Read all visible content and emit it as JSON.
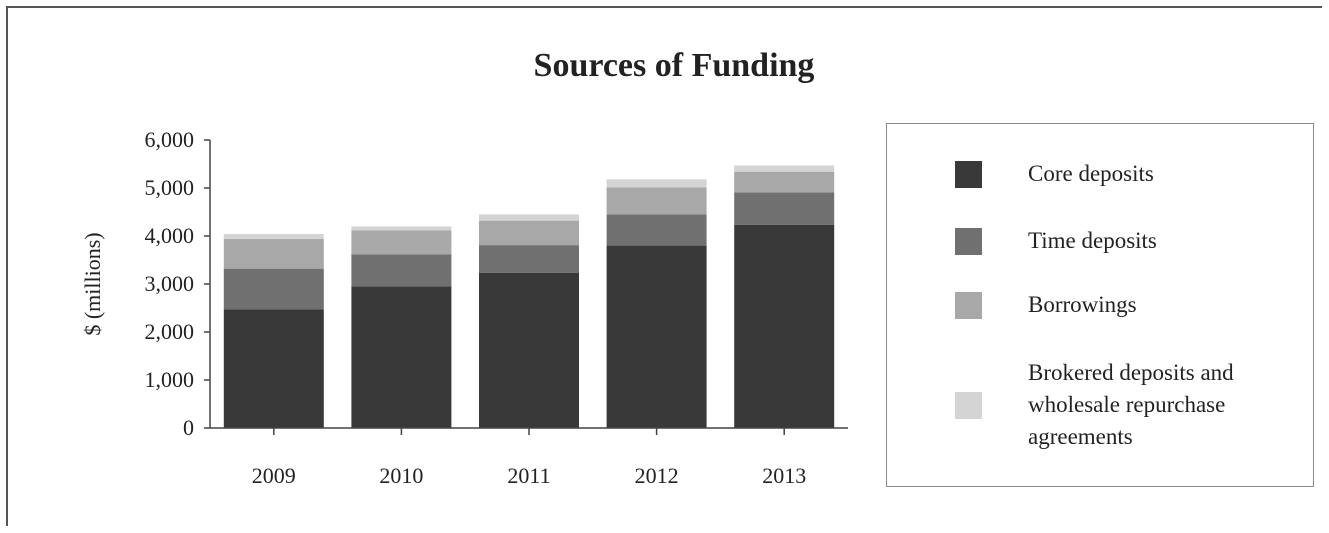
{
  "chart_data": {
    "type": "bar",
    "stacked": true,
    "title": "Sources of Funding",
    "xlabel": "",
    "ylabel": "$ (millions)",
    "ylim": [
      0,
      6000
    ],
    "yticks": [
      "0",
      "1,000",
      "2,000",
      "3,000",
      "4,000",
      "5,000",
      "6,000"
    ],
    "ytick_values": [
      0,
      1000,
      2000,
      3000,
      4000,
      5000,
      6000
    ],
    "categories": [
      "2009",
      "2010",
      "2011",
      "2012",
      "2013"
    ],
    "grid": false,
    "legend_position": "right",
    "series": [
      {
        "name": "Core deposits",
        "color": "#393939",
        "values": [
          2470,
          2950,
          3230,
          3800,
          4230
        ]
      },
      {
        "name": "Time deposits",
        "color": "#707070",
        "values": [
          850,
          670,
          580,
          650,
          680
        ]
      },
      {
        "name": "Borrowings",
        "color": "#a8a8a8",
        "values": [
          620,
          500,
          510,
          560,
          430
        ]
      },
      {
        "name": "Brokered deposits and wholesale repurchase agreements",
        "color": "#d4d4d4",
        "values": [
          100,
          80,
          130,
          170,
          130
        ]
      }
    ]
  },
  "legend": {
    "items": [
      {
        "lines": [
          "Core deposits"
        ]
      },
      {
        "lines": [
          "Time deposits"
        ]
      },
      {
        "lines": [
          "Borrowings"
        ]
      },
      {
        "lines": [
          "Brokered deposits and",
          "wholesale repurchase",
          "agreements"
        ]
      }
    ]
  }
}
